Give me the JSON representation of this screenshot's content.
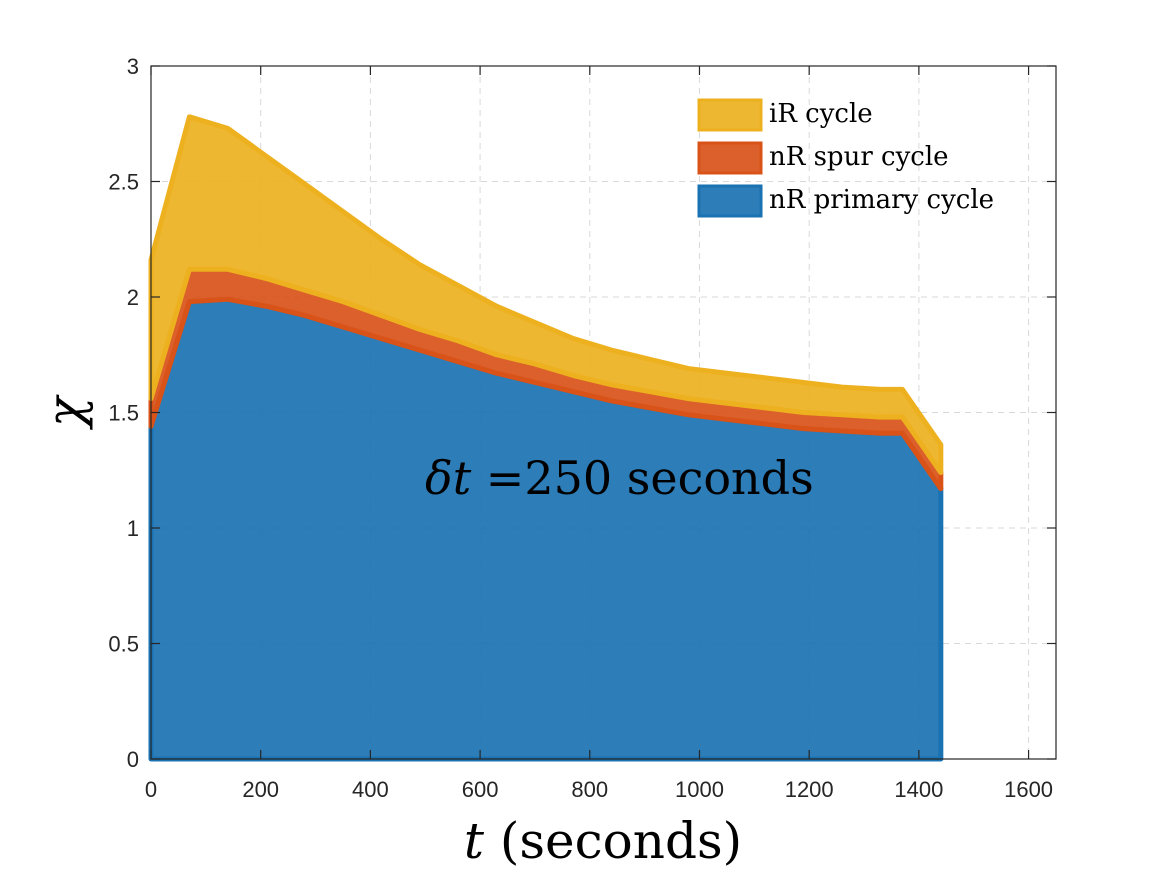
{
  "chart_data": {
    "type": "area",
    "stacked": true,
    "xlabel_var": "t",
    "xlabel_unit": "(seconds)",
    "ylabel": "χ",
    "annotation_symbol": "δt",
    "annotation_text": " =250 seconds",
    "xlim": [
      0,
      1650
    ],
    "ylim": [
      0,
      3
    ],
    "xticks": [
      0,
      200,
      400,
      600,
      800,
      1000,
      1200,
      1400,
      1600
    ],
    "yticks": [
      0,
      0.5,
      1,
      1.5,
      2,
      2.5,
      3
    ],
    "grid": true,
    "legend_position": "top-right",
    "x": [
      0,
      70,
      140,
      210,
      280,
      350,
      420,
      490,
      560,
      630,
      700,
      770,
      840,
      910,
      980,
      1050,
      1120,
      1190,
      1260,
      1330,
      1370,
      1440
    ],
    "series": [
      {
        "name": "nR primary cycle",
        "color": "#1a72b2",
        "values": [
          1.44,
          1.98,
          1.99,
          1.96,
          1.92,
          1.87,
          1.82,
          1.77,
          1.72,
          1.67,
          1.63,
          1.59,
          1.55,
          1.52,
          1.49,
          1.47,
          1.45,
          1.43,
          1.42,
          1.41,
          1.41,
          1.17
        ]
      },
      {
        "name": "nR spur cycle",
        "color": "#d95319",
        "values": [
          0.12,
          0.14,
          0.13,
          0.12,
          0.11,
          0.11,
          0.1,
          0.09,
          0.09,
          0.08,
          0.08,
          0.07,
          0.07,
          0.07,
          0.07,
          0.07,
          0.07,
          0.07,
          0.07,
          0.07,
          0.07,
          0.07
        ]
      },
      {
        "name": "iR cycle",
        "color": "#edb120",
        "values": [
          0.6,
          0.66,
          0.61,
          0.53,
          0.46,
          0.39,
          0.33,
          0.28,
          0.24,
          0.21,
          0.18,
          0.16,
          0.15,
          0.14,
          0.13,
          0.13,
          0.13,
          0.13,
          0.12,
          0.12,
          0.12,
          0.12
        ]
      }
    ]
  }
}
